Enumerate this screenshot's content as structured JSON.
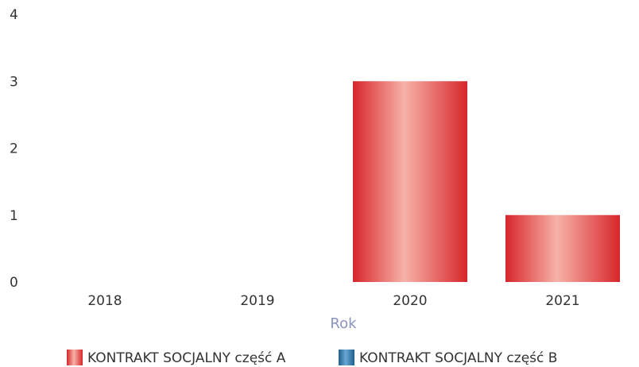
{
  "chart_data": {
    "type": "bar",
    "categories": [
      "2018",
      "2019",
      "2020",
      "2021"
    ],
    "series": [
      {
        "name": "KONTRAKT SOCJALNY część A",
        "values": [
          0,
          0,
          3,
          1
        ],
        "color": "#e8403c"
      },
      {
        "name": "KONTRAKT SOCJALNY część B",
        "values": [
          0,
          0,
          0,
          0
        ],
        "color": "#2a6d9a"
      }
    ],
    "title": "",
    "xlabel": "Rok",
    "ylabel": "",
    "ylim": [
      0,
      4
    ],
    "yticks": [
      "0",
      "1",
      "2",
      "3",
      "4"
    ],
    "grid": false,
    "legend_position": "bottom-center"
  }
}
